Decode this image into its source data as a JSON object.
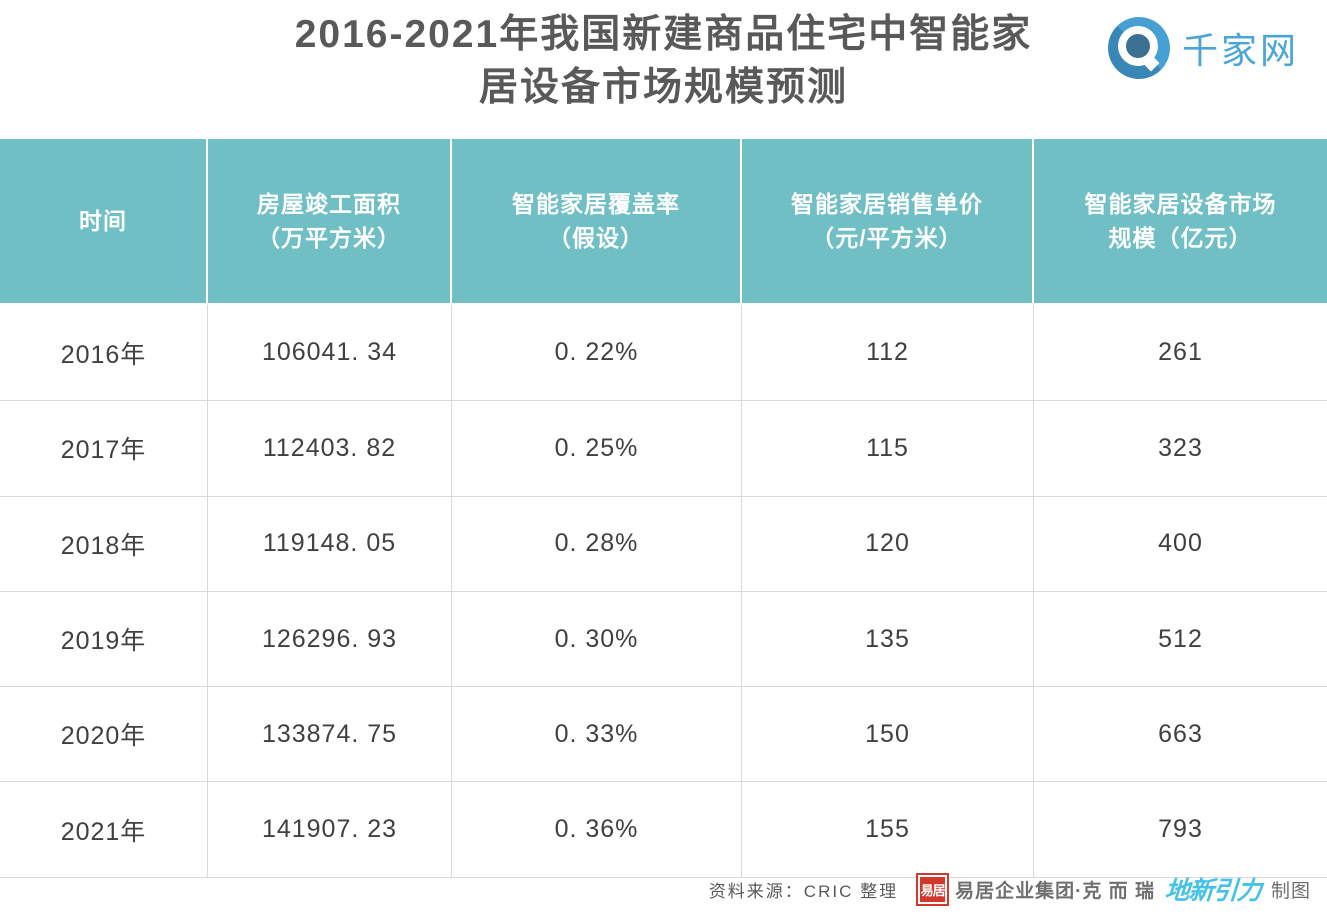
{
  "header": {
    "title": "2016-2021年我国新建商品住宅中智能家\n居设备市场规模预测",
    "logo": {
      "brand_text": "千家网"
    }
  },
  "table": {
    "columns": [
      "时间",
      "房屋竣工面积\n（万平方米）",
      "智能家居覆盖率\n（假设）",
      "智能家居销售单价\n（元/平方米）",
      "智能家居设备市场\n规模（亿元）"
    ],
    "rows": [
      [
        "2016年",
        "106041. 34",
        "0. 22%",
        "112",
        "261"
      ],
      [
        "2017年",
        "112403. 82",
        "0. 25%",
        "115",
        "323"
      ],
      [
        "2018年",
        "119148. 05",
        "0. 28%",
        "120",
        "400"
      ],
      [
        "2019年",
        "126296. 93",
        "0. 30%",
        "135",
        "512"
      ],
      [
        "2020年",
        "133874. 75",
        "0. 33%",
        "150",
        "663"
      ],
      [
        "2021年",
        "141907. 23",
        "0. 36%",
        "155",
        "793"
      ]
    ]
  },
  "footer": {
    "source_text": "资料来源：CRIC 整理",
    "seal_text": "易居",
    "cric_text": "易居企业集团·克 而 瑞",
    "dixin_text": "地新引力",
    "made_by_text": "制图"
  },
  "colors": {
    "header_bg": "#6FBFC4",
    "header_text": "#FFFFFF",
    "cell_text": "#404040",
    "grid_line": "#D9D9D9",
    "title_text": "#595959",
    "footer_text": "#595959",
    "cric_gray": "#6F6F6F",
    "seal_red": "#D2382C",
    "dixin_blue": "#45C2EA",
    "logo_blue": "#47A0D4",
    "logo_shadow": "#3987B7",
    "logo_inner_circle": "#3B7092",
    "brand_text_blue": "#4BA5D9"
  },
  "chart_data": {
    "type": "table",
    "title": "2016-2021年我国新建商品住宅中智能家居设备市场规模预测",
    "columns": [
      "时间",
      "房屋竣工面积（万平方米）",
      "智能家居覆盖率（假设）",
      "智能家居销售单价（元/平方米）",
      "智能家居设备市场规模（亿元）"
    ],
    "rows": [
      [
        "2016年",
        106041.34,
        "0.22%",
        112,
        261
      ],
      [
        "2017年",
        112403.82,
        "0.25%",
        115,
        323
      ],
      [
        "2018年",
        119148.05,
        "0.28%",
        120,
        400
      ],
      [
        "2019年",
        126296.93,
        "0.30%",
        135,
        512
      ],
      [
        "2020年",
        133874.75,
        "0.33%",
        150,
        663
      ],
      [
        "2021年",
        141907.23,
        "0.36%",
        155,
        793
      ]
    ],
    "source": "资料来源：CRIC 整理"
  }
}
